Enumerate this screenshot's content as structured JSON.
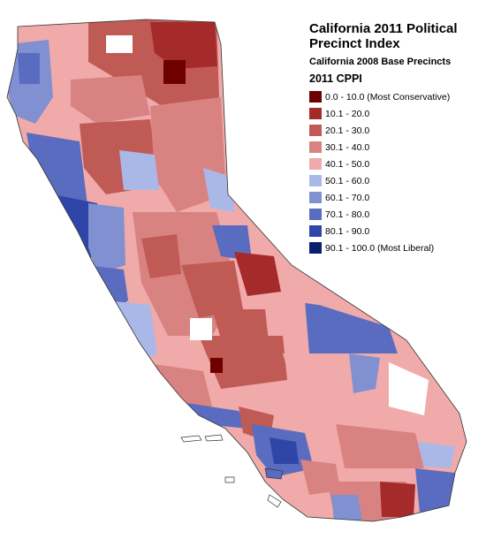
{
  "map": {
    "title_line1": "California 2011 Political",
    "title_line2": "Precinct Index",
    "subtitle": "California 2008 Base Precincts",
    "legend_title": "2011 CPPI",
    "legend": [
      {
        "label": "0.0 - 10.0 (Most Conservative)",
        "color": "#6e0000"
      },
      {
        "label": "10.1 - 20.0",
        "color": "#a52a2a"
      },
      {
        "label": "20.1 - 30.0",
        "color": "#c05a55"
      },
      {
        "label": "30.1 - 40.0",
        "color": "#d98282"
      },
      {
        "label": "40.1 - 50.0",
        "color": "#f0aaaa"
      },
      {
        "label": "50.1 - 60.0",
        "color": "#aab8e8"
      },
      {
        "label": "60.1 - 70.0",
        "color": "#8090d0"
      },
      {
        "label": "70.1 - 80.0",
        "color": "#5a6cc0"
      },
      {
        "label": "80.1 - 90.0",
        "color": "#2f46a8"
      },
      {
        "label": "90.1 - 100.0 (Most Liberal)",
        "color": "#0a1f6e"
      }
    ],
    "outline_color": "#222222",
    "no_data_color": "#ffffff"
  }
}
